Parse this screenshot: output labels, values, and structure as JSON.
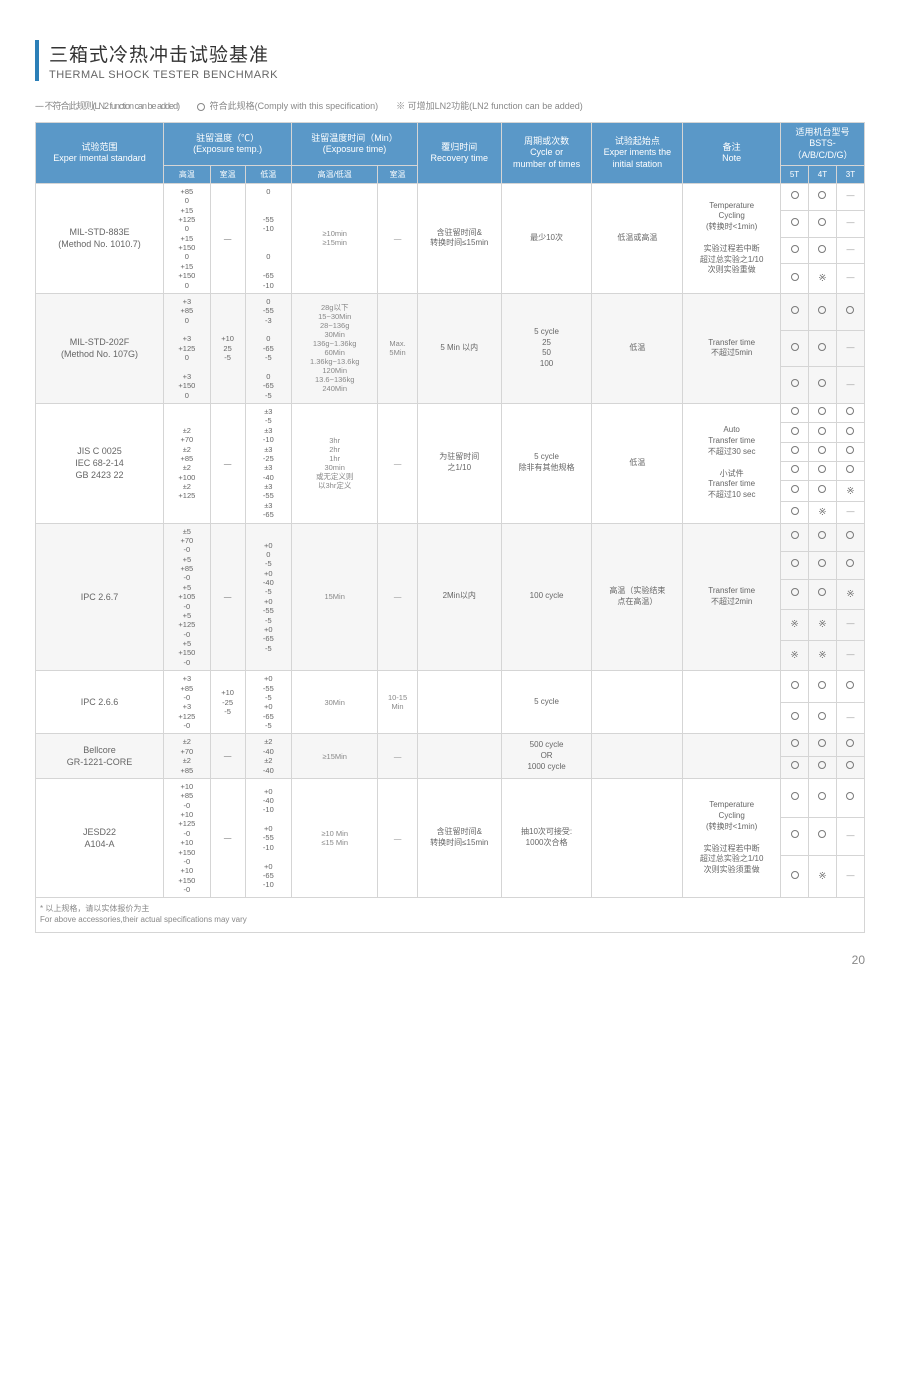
{
  "title": {
    "cn": "三箱式冷热冲击试验基准",
    "en": "THERMAL SHOCK TESTER BENCHMARK"
  },
  "legend": {
    "a": "---- 不符合此规则(LN2 function can be added)",
    "b": "符合此规格(Comply with this specification)",
    "c": "※ 可增加LN2功能(LN2 function can be added)"
  },
  "headers": {
    "std": "试验范围\nExper imental standard",
    "temp": "驻留温度（℃）\n(Exposure temp.)",
    "time": "驻留温度时间（Min）\n(Exposure time)",
    "recov": "覆归时间\nRecovery time",
    "cycle": "周期或次数\nCycle or\nmumber of times",
    "start": "试验起始点\nExper iments the\ninitial station",
    "note": "备注\nNote",
    "model": "适用机台型号\nBSTS-（A/B/C/D/G）",
    "sub": {
      "高温": "高温",
      "室温": "室温",
      "低温": "低温",
      "高低": "高温/低温",
      "室温2": "室温",
      "5T": "5T",
      "4T": "4T",
      "3T": "3T"
    }
  },
  "rows": [
    {
      "std": "MIL-STD-883E\n(Method No. 1010.7)",
      "hi": "+85\n0\n+15\n+125\n0\n+15\n+150\n0\n+15\n+150\n0",
      "rt": "—",
      "lo": "0\n\n\n-55\n-10\n\n\n0\n\n-65\n-10",
      "exp_hl": "≥10min\n≥15min",
      "exp_rt": "—",
      "recov": "含驻留时间&\n转换时间≤15min",
      "cycle": "最少10次",
      "start": "低温或高温",
      "note": "Temperature\nCycling\n(转换时<1min)\n\n实验过程若中断\n超过总实验之1/10\n次则实验重做",
      "marks": [
        [
          "o",
          "o",
          "—"
        ],
        [
          "o",
          "o",
          "—"
        ],
        [
          "o",
          "o",
          "—"
        ],
        [
          "o",
          "x",
          "—"
        ]
      ]
    },
    {
      "std": "MIL-STD-202F\n(Method No. 107G)",
      "hi": "+3\n+85\n0\n\n+3\n+125\n0\n\n+3\n+150\n0",
      "rt": "+10\n25\n-5",
      "lo": "0\n-55\n-3\n\n0\n-65\n-5\n\n0\n-65\n-5",
      "exp_hl": "28g以下\n15~30Min\n28~136g\n30Min\n136g~1.36kg\n60Min\n1.36kg~13.6kg\n120Min\n13.6~136kg\n240Min",
      "exp_rt": "Max.\n5Min",
      "recov": "5 Min 以内",
      "cycle": "5 cycle\n25\n50\n100",
      "start": "低温",
      "note": "Transfer time\n不超过5min",
      "marks": [
        [
          "o",
          "o",
          "o"
        ],
        [
          "o",
          "o",
          "—"
        ],
        [
          "o",
          "o",
          "—"
        ]
      ],
      "alt": true
    },
    {
      "std": "JIS C 0025\nIEC 68-2-14\nGB 2423 22",
      "hi": "±2\n+70\n±2\n+85\n±2\n+100\n±2\n+125",
      "rt": "—",
      "lo": "±3\n-5\n±3\n-10\n±3\n-25\n±3\n-40\n±3\n-55\n±3\n-65",
      "exp_hl": "3hr\n2hr\n1hr\n30min\n或无定义则\n以3hr定义",
      "exp_rt": "—",
      "recov": "为驻留时间\n之1/10",
      "cycle": "5 cycle\n除非有其他规格",
      "start": "低温",
      "note": "Auto\nTransfer time\n不超过30 sec\n\n小试件\nTransfer time\n不超过10 sec",
      "marks": [
        [
          "o",
          "o",
          "o"
        ],
        [
          "o",
          "o",
          "o"
        ],
        [
          "o",
          "o",
          "o"
        ],
        [
          "o",
          "o",
          "o"
        ],
        [
          "o",
          "o",
          "x"
        ],
        [
          "o",
          "x",
          "—"
        ]
      ]
    },
    {
      "std": "IPC 2.6.7",
      "hi": "±5\n+70\n-0\n+5\n+85\n-0\n+5\n+105\n-0\n+5\n+125\n-0\n+5\n+150\n-0",
      "rt": "—",
      "lo": "+0\n0\n-5\n+0\n-40\n-5\n+0\n-55\n-5\n+0\n-65\n-5",
      "exp_hl": "15Min",
      "exp_rt": "—",
      "recov": "2Min以内",
      "cycle": "100 cycle",
      "start": "高温（实验结束\n点在高温）",
      "note": "Transfer time\n不超过2min",
      "marks": [
        [
          "o",
          "o",
          "o"
        ],
        [
          "o",
          "o",
          "o"
        ],
        [
          "o",
          "o",
          "x"
        ],
        [
          "x",
          "x",
          "—"
        ],
        [
          "x",
          "x",
          "—"
        ]
      ],
      "alt": true
    },
    {
      "std": "IPC 2.6.6",
      "hi": "+3\n+85\n-0\n+3\n+125\n-0",
      "rt": "+10\n-25\n-5",
      "lo": "+0\n-55\n-5\n+0\n-65\n-5",
      "exp_hl": "30Min",
      "exp_rt": "10-15\nMin",
      "recov": "",
      "cycle": "5 cycle",
      "start": "",
      "note": "",
      "marks": [
        [
          "o",
          "o",
          "o"
        ],
        [
          "o",
          "o",
          "—"
        ]
      ]
    },
    {
      "std": "Bellcore\nGR-1221-CORE",
      "hi": "±2\n+70\n±2\n+85",
      "rt": "—",
      "lo": "±2\n-40\n±2\n-40",
      "exp_hl": "≥15Min",
      "exp_rt": "—",
      "recov": "",
      "cycle": "500 cycle\nOR\n1000 cycle",
      "start": "",
      "note": "",
      "marks": [
        [
          "o",
          "o",
          "o"
        ],
        [
          "o",
          "o",
          "o"
        ]
      ],
      "alt": true
    },
    {
      "std": "JESD22\nA104-A",
      "hi": "+10\n+85\n-0\n+10\n+125\n-0\n+10\n+150\n-0\n+10\n+150\n-0",
      "rt": "—",
      "lo": "+0\n-40\n-10\n\n+0\n-55\n-10\n\n+0\n-65\n-10",
      "exp_hl": "≥10 Min\n≤15 Min",
      "exp_rt": "—",
      "recov": "含驻留时间&\n转换时间≤15min",
      "cycle": "抽10次可接受:\n1000次合格",
      "start": "",
      "note": "Temperature\nCycling\n(转换时<1min)\n\n实验过程若中断\n超过总实验之1/10\n次则实验须重做",
      "marks": [
        [
          "o",
          "o",
          "o"
        ],
        [
          "o",
          "o",
          "—"
        ],
        [
          "o",
          "x",
          "—"
        ]
      ]
    }
  ],
  "footnote": "* 以上规格，请以实体报价为主\n  For above accessories,their actual specifications may vary",
  "page": "20"
}
